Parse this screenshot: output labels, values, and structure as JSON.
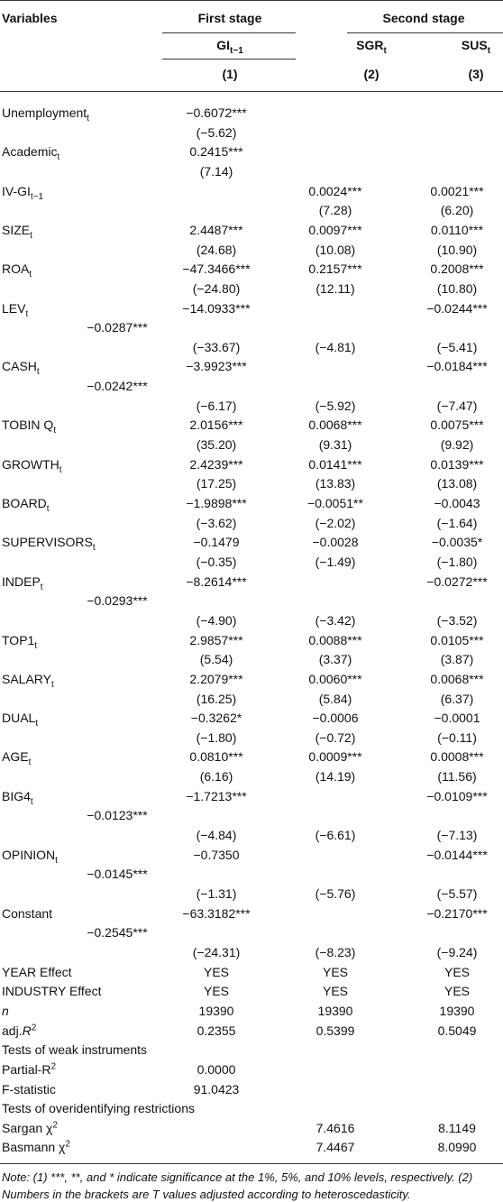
{
  "header": {
    "variables": "Variables",
    "groups": [
      {
        "text": "First stage",
        "center": 0
      },
      {
        "text": "Second stage",
        "center": 1
      }
    ],
    "columns": [
      {
        "label": [
          {
            "t": "GI"
          },
          {
            "t": "t−1",
            "sub": true
          }
        ],
        "number": "(1)"
      },
      {
        "label": [
          {
            "t": "SGR"
          },
          {
            "t": "t",
            "sub": true
          }
        ],
        "number": "(2)"
      },
      {
        "label": [
          {
            "t": "SUS"
          },
          {
            "t": "t",
            "sub": true
          }
        ],
        "number": "(3)"
      }
    ]
  },
  "rows": [
    {
      "label": [
        {
          "t": "Unemployment"
        },
        {
          "t": "t",
          "sub": true
        }
      ],
      "cells": [
        "−0.6072***",
        null,
        null
      ]
    },
    {
      "cells": [
        "(−5.62)",
        null,
        null
      ]
    },
    {
      "label": [
        {
          "t": "Academic"
        },
        {
          "t": "t",
          "sub": true
        }
      ],
      "cells": [
        "0.2415***",
        null,
        null
      ]
    },
    {
      "cells": [
        "(7.14)",
        null,
        null
      ]
    },
    {
      "label": [
        {
          "t": "IV-GI"
        },
        {
          "t": "t−1",
          "sub": true
        }
      ],
      "cells": [
        null,
        "0.0024***",
        "0.0021***"
      ]
    },
    {
      "cells": [
        null,
        "(7.28)",
        "(6.20)"
      ]
    },
    {
      "label": [
        {
          "t": "SIZE"
        },
        {
          "t": "t",
          "sub": true
        }
      ],
      "cells": [
        "2.4487***",
        "0.0097***",
        "0.0110***"
      ]
    },
    {
      "cells": [
        "(24.68)",
        "(10.08)",
        "(10.90)"
      ]
    },
    {
      "label": [
        {
          "t": "ROA"
        },
        {
          "t": "t",
          "sub": true
        }
      ],
      "cells": [
        "−47.3466***",
        "0.2157***",
        "0.2008***"
      ]
    },
    {
      "cells": [
        "(−24.80)",
        "(12.11)",
        "(10.80)"
      ]
    },
    {
      "label": [
        {
          "t": "LEV"
        },
        {
          "t": "t",
          "sub": true
        }
      ],
      "cells": [
        "−14.0933***",
        null,
        "−0.0244***"
      ]
    },
    {
      "stray": "−0.0287***"
    },
    {
      "cells": [
        "(−33.67)",
        "(−4.81)",
        "(−5.41)"
      ]
    },
    {
      "label": [
        {
          "t": "CASH"
        },
        {
          "t": "t",
          "sub": true
        }
      ],
      "cells": [
        "−3.9923***",
        null,
        "−0.0184***"
      ]
    },
    {
      "stray": "−0.0242***"
    },
    {
      "cells": [
        "(−6.17)",
        "(−5.92)",
        "(−7.47)"
      ]
    },
    {
      "label": [
        {
          "t": "TOBIN Q"
        },
        {
          "t": "t",
          "sub": true
        }
      ],
      "cells": [
        "2.0156***",
        "0.0068***",
        "0.0075***"
      ]
    },
    {
      "cells": [
        "(35.20)",
        "(9.31)",
        "(9.92)"
      ]
    },
    {
      "label": [
        {
          "t": "GROWTH"
        },
        {
          "t": "t",
          "sub": true
        }
      ],
      "cells": [
        "2.4239***",
        "0.0141***",
        "0.0139***"
      ]
    },
    {
      "cells": [
        "(17.25)",
        "(13.83)",
        "(13.08)"
      ]
    },
    {
      "label": [
        {
          "t": "BOARD"
        },
        {
          "t": "t",
          "sub": true
        }
      ],
      "cells": [
        "−1.9898***",
        "−0.0051**",
        "−0.0043"
      ]
    },
    {
      "cells": [
        "(−3.62)",
        "(−2.02)",
        "(−1.64)"
      ]
    },
    {
      "label": [
        {
          "t": "SUPERVISORS"
        },
        {
          "t": "t",
          "sub": true
        }
      ],
      "cells": [
        "−0.1479",
        "−0.0028",
        "−0.0035*"
      ]
    },
    {
      "cells": [
        "(−0.35)",
        "(−1.49)",
        "(−1.80)"
      ]
    },
    {
      "label": [
        {
          "t": "INDEP"
        },
        {
          "t": "t",
          "sub": true
        }
      ],
      "cells": [
        "−8.2614***",
        null,
        "−0.0272***"
      ]
    },
    {
      "stray": "−0.0293***"
    },
    {
      "cells": [
        "(−4.90)",
        "(−3.42)",
        "(−3.52)"
      ]
    },
    {
      "label": [
        {
          "t": "TOP1"
        },
        {
          "t": "t",
          "sub": true
        }
      ],
      "cells": [
        "2.9857***",
        "0.0088***",
        "0.0105***"
      ]
    },
    {
      "cells": [
        "(5.54)",
        "(3.37)",
        "(3.87)"
      ]
    },
    {
      "label": [
        {
          "t": "SALARY"
        },
        {
          "t": "t",
          "sub": true
        }
      ],
      "cells": [
        "2.2079***",
        "0.0060***",
        "0.0068***"
      ]
    },
    {
      "cells": [
        "(16.25)",
        "(5.84)",
        "(6.37)"
      ]
    },
    {
      "label": [
        {
          "t": "DUAL"
        },
        {
          "t": "t",
          "sub": true
        }
      ],
      "cells": [
        "−0.3262*",
        "−0.0006",
        "−0.0001"
      ]
    },
    {
      "cells": [
        "(−1.80)",
        "(−0.72)",
        "(−0.11)"
      ]
    },
    {
      "label": [
        {
          "t": "AGE"
        },
        {
          "t": "t",
          "sub": true
        }
      ],
      "cells": [
        "0.0810***",
        "0.0009***",
        "0.0008***"
      ]
    },
    {
      "cells": [
        "(6.16)",
        "(14.19)",
        "(11.56)"
      ]
    },
    {
      "label": [
        {
          "t": "BIG4"
        },
        {
          "t": "t",
          "sub": true
        }
      ],
      "cells": [
        "−1.7213***",
        null,
        "−0.0109***"
      ]
    },
    {
      "stray": "−0.0123***"
    },
    {
      "cells": [
        "(−4.84)",
        "(−6.61)",
        "(−7.13)"
      ]
    },
    {
      "label": [
        {
          "t": "OPINION"
        },
        {
          "t": "t",
          "sub": true
        }
      ],
      "cells": [
        "−0.7350",
        null,
        "−0.0144***"
      ]
    },
    {
      "stray": "−0.0145***"
    },
    {
      "cells": [
        "(−1.31)",
        "(−5.76)",
        "(−5.57)"
      ]
    },
    {
      "label": [
        {
          "t": "Constant"
        }
      ],
      "cells": [
        "−63.3182***",
        null,
        "−0.2170***"
      ]
    },
    {
      "stray": "−0.2545***"
    },
    {
      "cells": [
        "(−24.31)",
        "(−8.23)",
        "(−9.24)"
      ]
    },
    {
      "label": [
        {
          "t": "YEAR Effect"
        }
      ],
      "cells": [
        "YES",
        "YES",
        "YES"
      ]
    },
    {
      "label": [
        {
          "t": "INDUSTRY Effect"
        }
      ],
      "cells": [
        "YES",
        "YES",
        "YES"
      ]
    },
    {
      "label": [
        {
          "t": "n",
          "i": true
        }
      ],
      "cells": [
        "19390",
        "19390",
        "19390"
      ]
    },
    {
      "label": [
        {
          "t": "adj."
        },
        {
          "t": "R",
          "i": true
        },
        {
          "t": "2",
          "sup": true
        }
      ],
      "cells": [
        "0.2355",
        "0.5399",
        "0.5049"
      ]
    },
    {
      "label": [
        {
          "t": "Tests of weak instruments"
        }
      ]
    },
    {
      "label": [
        {
          "t": "Partial-R"
        },
        {
          "t": "2",
          "sup": true
        }
      ],
      "cells": [
        "0.0000",
        null,
        null
      ]
    },
    {
      "label": [
        {
          "t": "F-statistic"
        }
      ],
      "cells": [
        "91.0423",
        null,
        null
      ]
    },
    {
      "label": [
        {
          "t": "Tests of overidentifying restrictions"
        }
      ]
    },
    {
      "label": [
        {
          "t": "Sargan χ"
        },
        {
          "t": "2",
          "sup": true
        }
      ],
      "cells": [
        null,
        "7.4616",
        "8.1149"
      ]
    },
    {
      "label": [
        {
          "t": "Basmann χ"
        },
        {
          "t": "2",
          "sup": true
        }
      ],
      "cells": [
        null,
        "7.4467",
        "8.0990"
      ]
    }
  ],
  "note": "Note: (1) ***, **, and * indicate significance at the 1%, 5%, and 10% levels, respectively. (2) Numbers in the brackets are T values adjusted according to heteroscedasticity."
}
